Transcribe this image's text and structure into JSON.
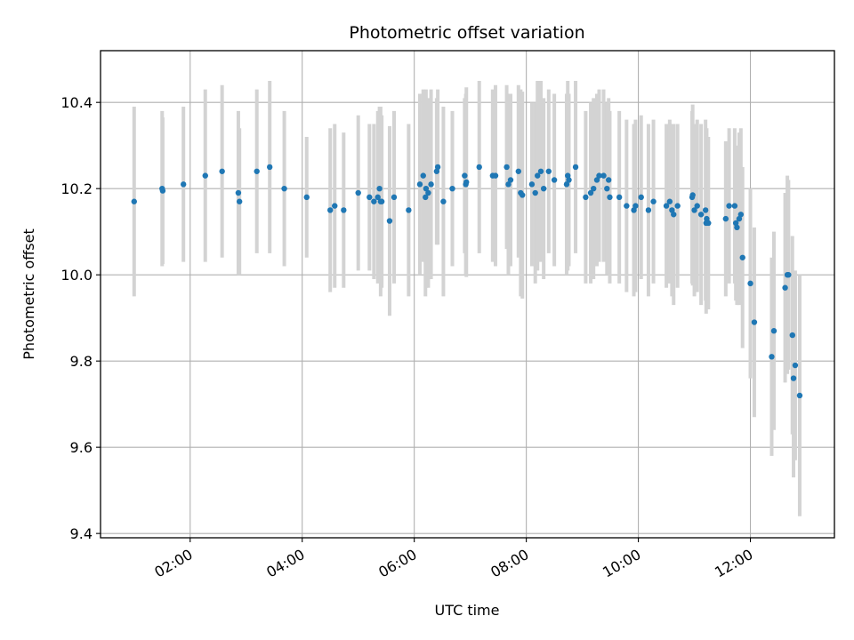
{
  "chart_data": {
    "type": "scatter",
    "title": "Photometric offset variation",
    "xlabel": "UTC time",
    "ylabel": "Photometric offset",
    "xlim": [
      0.4,
      13.5
    ],
    "ylim": [
      9.39,
      10.52
    ],
    "grid": true,
    "x_ticks": [
      2,
      4,
      6,
      8,
      10,
      12
    ],
    "x_tick_labels": [
      "02:00",
      "04:00",
      "06:00",
      "08:00",
      "10:00",
      "12:00"
    ],
    "y_ticks": [
      9.4,
      9.6,
      9.8,
      10.0,
      10.2,
      10.4
    ],
    "y_tick_labels": [
      "9.4",
      "9.6",
      "9.8",
      "10.0",
      "10.2",
      "10.4"
    ],
    "marker_color": "#1f77b4",
    "errorbar_color": "#d3d3d3",
    "series": [
      {
        "name": "offset",
        "x": [
          1.0,
          1.5,
          1.51,
          1.88,
          2.27,
          2.57,
          2.86,
          2.88,
          3.19,
          3.42,
          3.68,
          4.08,
          4.5,
          4.58,
          4.74,
          5.0,
          5.2,
          5.28,
          5.35,
          5.38,
          5.4,
          5.42,
          5.56,
          5.64,
          5.9,
          6.1,
          6.16,
          6.2,
          6.21,
          6.25,
          6.3,
          6.4,
          6.42,
          6.52,
          6.68,
          6.9,
          6.92,
          6.93,
          7.16,
          7.4,
          7.45,
          7.65,
          7.68,
          7.72,
          7.86,
          7.9,
          7.93,
          8.1,
          8.16,
          8.2,
          8.26,
          8.31,
          8.4,
          8.5,
          8.72,
          8.74,
          8.76,
          8.88,
          9.06,
          9.15,
          9.2,
          9.26,
          9.3,
          9.38,
          9.44,
          9.47,
          9.49,
          9.66,
          9.79,
          9.92,
          9.95,
          10.05,
          10.18,
          10.27,
          10.5,
          10.56,
          10.6,
          10.63,
          10.7,
          10.96,
          10.97,
          11.0,
          11.05,
          11.12,
          11.2,
          11.21,
          11.22,
          11.25,
          11.56,
          11.62,
          11.72,
          11.74,
          11.76,
          11.8,
          11.83,
          11.86,
          12.0,
          12.07,
          12.38,
          12.42,
          12.62,
          12.66,
          12.68,
          12.75,
          12.77,
          12.8,
          12.88
        ],
        "y": [
          10.17,
          10.2,
          10.195,
          10.21,
          10.23,
          10.24,
          10.19,
          10.17,
          10.24,
          10.25,
          10.2,
          10.18,
          10.15,
          10.16,
          10.15,
          10.19,
          10.18,
          10.17,
          10.18,
          10.2,
          10.17,
          10.17,
          10.125,
          10.18,
          10.15,
          10.21,
          10.23,
          10.18,
          10.2,
          10.19,
          10.21,
          10.24,
          10.25,
          10.17,
          10.2,
          10.23,
          10.21,
          10.215,
          10.25,
          10.23,
          10.23,
          10.25,
          10.21,
          10.22,
          10.24,
          10.19,
          10.185,
          10.21,
          10.19,
          10.23,
          10.24,
          10.2,
          10.24,
          10.22,
          10.21,
          10.23,
          10.22,
          10.25,
          10.18,
          10.19,
          10.2,
          10.22,
          10.23,
          10.23,
          10.2,
          10.22,
          10.18,
          10.18,
          10.16,
          10.15,
          10.16,
          10.18,
          10.15,
          10.17,
          10.16,
          10.17,
          10.15,
          10.14,
          10.16,
          10.18,
          10.185,
          10.15,
          10.16,
          10.14,
          10.15,
          10.12,
          10.13,
          10.12,
          10.13,
          10.16,
          10.16,
          10.12,
          10.11,
          10.13,
          10.14,
          10.04,
          9.98,
          9.89,
          9.81,
          9.87,
          9.97,
          10.0,
          10.0,
          9.86,
          9.76,
          9.79,
          9.72
        ],
        "err": [
          0.22,
          0.18,
          0.17,
          0.18,
          0.2,
          0.2,
          0.19,
          0.17,
          0.19,
          0.2,
          0.18,
          0.14,
          0.19,
          0.19,
          0.18,
          0.18,
          0.17,
          0.18,
          0.2,
          0.19,
          0.22,
          0.2,
          0.22,
          0.2,
          0.2,
          0.21,
          0.2,
          0.23,
          0.23,
          0.22,
          0.22,
          0.17,
          0.18,
          0.22,
          0.18,
          0.18,
          0.21,
          0.22,
          0.2,
          0.2,
          0.21,
          0.19,
          0.21,
          0.2,
          0.2,
          0.24,
          0.24,
          0.19,
          0.21,
          0.22,
          0.21,
          0.21,
          0.19,
          0.2,
          0.21,
          0.22,
          0.2,
          0.2,
          0.2,
          0.21,
          0.21,
          0.2,
          0.2,
          0.2,
          0.2,
          0.19,
          0.2,
          0.2,
          0.2,
          0.2,
          0.2,
          0.19,
          0.2,
          0.19,
          0.19,
          0.19,
          0.2,
          0.21,
          0.19,
          0.2,
          0.21,
          0.2,
          0.2,
          0.21,
          0.21,
          0.21,
          0.21,
          0.2,
          0.18,
          0.18,
          0.18,
          0.18,
          0.18,
          0.2,
          0.2,
          0.21,
          0.22,
          0.22,
          0.23,
          0.23,
          0.22,
          0.23,
          0.22,
          0.23,
          0.23,
          0.22,
          0.28
        ]
      }
    ]
  }
}
